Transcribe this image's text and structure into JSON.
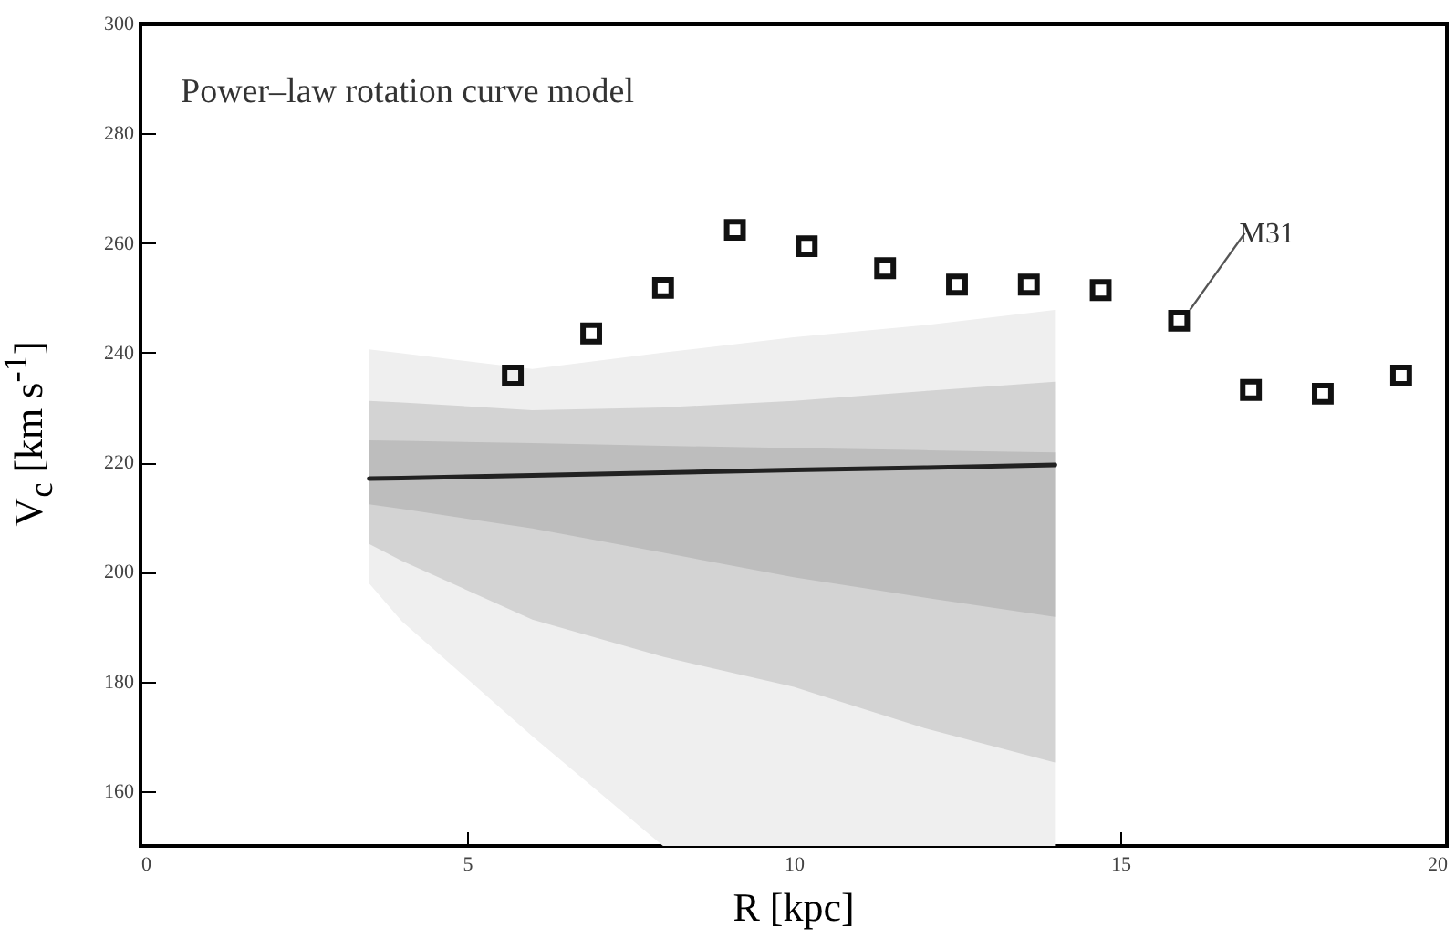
{
  "chart_data": {
    "type": "line",
    "title": "Power–law rotation curve model",
    "xlabel": "R [kpc]",
    "ylabel": "V$_{c}$ [km s$^{-1}$]",
    "xlim": [
      0,
      20
    ],
    "xticks": [
      0,
      5,
      10,
      15,
      20
    ],
    "ylim": [
      150,
      300
    ],
    "yticks": [
      160,
      180,
      200,
      220,
      240,
      260,
      280,
      300
    ],
    "grid": false,
    "line_style": "solid",
    "annotations": [
      {
        "text": "M31",
        "x": 15.9,
        "y": 245.8
      }
    ],
    "series": [
      {
        "color": "#efefef",
        "x": [
          3.5,
          4,
          6,
          8,
          10,
          12,
          14
        ],
        "values": [
          null,
          null,
          null,
          null,
          null,
          null,
          null
        ],
        "lower": [
          197.9,
          191,
          170,
          150,
          150,
          150,
          150
        ],
        "upper": [
          240.6,
          239.9,
          237,
          240,
          242.8,
          245,
          247.8
        ]
      },
      {
        "color": "#d3d3d3",
        "x": [
          3.5,
          4,
          6,
          8,
          10,
          12,
          14
        ],
        "values": [
          null,
          null,
          null,
          null,
          null,
          null,
          null
        ],
        "lower": [
          205.1,
          202,
          191.3,
          184.5,
          179,
          171.5,
          165.2
        ],
        "upper": [
          231.2,
          230.9,
          229.5,
          230,
          231.2,
          233,
          234.7
        ]
      },
      {
        "color": "#bdbdbd",
        "x": [
          3.5,
          4,
          6,
          8,
          10,
          12,
          14
        ],
        "values": [
          null,
          null,
          null,
          null,
          null,
          null,
          null
        ],
        "lower": [
          212.3,
          211.5,
          207.9,
          203.5,
          199,
          195.3,
          191.8
        ],
        "upper": [
          224,
          223.9,
          223.5,
          223,
          222.6,
          222.2,
          221.8
        ]
      },
      {
        "color": "#222222",
        "x": [
          3.5,
          4,
          6,
          8,
          10,
          12,
          14
        ],
        "values": [
          217,
          217.1,
          217.6,
          218.1,
          218.6,
          219,
          219.5
        ]
      },
      {
        "type": "scatter",
        "marker": "square",
        "color": "#111111",
        "x": [
          5.7,
          6.9,
          8.0,
          9.1,
          10.2,
          11.4,
          12.5,
          13.6,
          14.7,
          15.9,
          17.0,
          18.1,
          19.3
        ],
        "values": [
          235.8,
          243.5,
          251.8,
          262.4,
          259.4,
          255.4,
          252.4,
          252.4,
          251.4,
          245.8,
          233.2,
          232.5,
          235.8
        ]
      }
    ]
  }
}
